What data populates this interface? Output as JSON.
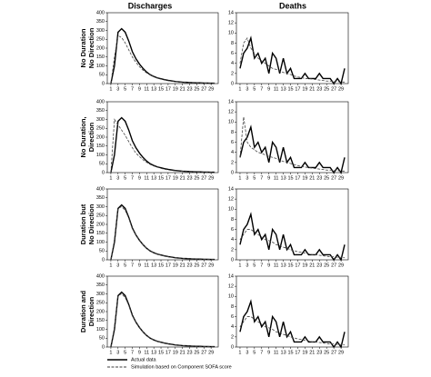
{
  "column_titles": [
    "Discharges",
    "Deaths"
  ],
  "row_labels": [
    [
      "No Duration",
      "No Direction"
    ],
    [
      "No Duration,",
      "Direction"
    ],
    [
      "Duration but",
      "No Direction"
    ],
    [
      "Duration and",
      "Direction"
    ]
  ],
  "legend": [
    {
      "name": "Actual data",
      "dash": false
    },
    {
      "name": "Simulation based on Component SOFA score",
      "dash": true
    }
  ],
  "chart_data": [
    {
      "type": "line",
      "x": [
        1,
        2,
        3,
        4,
        5,
        6,
        7,
        8,
        9,
        10,
        11,
        12,
        13,
        14,
        15,
        16,
        17,
        18,
        19,
        20,
        21,
        22,
        23,
        24,
        25,
        26,
        27,
        28,
        29,
        30
      ],
      "xlim": [
        0,
        31
      ],
      "xticks": [
        1,
        3,
        5,
        7,
        9,
        11,
        13,
        15,
        17,
        19,
        21,
        23,
        25,
        27,
        29
      ],
      "ylim": [
        0,
        400
      ],
      "yticks": [
        0,
        50,
        100,
        150,
        200,
        250,
        300,
        350,
        400
      ],
      "series": [
        {
          "color": "#000000",
          "dash": false,
          "values": [
            0,
            100,
            290,
            310,
            290,
            240,
            180,
            140,
            110,
            85,
            65,
            50,
            40,
            32,
            27,
            22,
            18,
            15,
            12,
            10,
            8,
            7,
            6,
            5,
            4,
            4,
            3,
            3,
            2,
            2
          ]
        },
        {
          "color": "#444444",
          "dash": true,
          "values": [
            0,
            150,
            270,
            260,
            230,
            190,
            150,
            120,
            95,
            75,
            60,
            48,
            38,
            30,
            25,
            20,
            16,
            13,
            11,
            9,
            7,
            6,
            5,
            4,
            4,
            3,
            3,
            2,
            2,
            2
          ]
        }
      ]
    },
    {
      "type": "line",
      "x": [
        1,
        2,
        3,
        4,
        5,
        6,
        7,
        8,
        9,
        10,
        11,
        12,
        13,
        14,
        15,
        16,
        17,
        18,
        19,
        20,
        21,
        22,
        23,
        24,
        25,
        26,
        27,
        28,
        29,
        30
      ],
      "xlim": [
        0,
        31
      ],
      "xticks": [
        1,
        3,
        5,
        7,
        9,
        11,
        13,
        15,
        17,
        19,
        21,
        23,
        25,
        27,
        29
      ],
      "ylim": [
        0,
        14
      ],
      "yticks": [
        0,
        2,
        4,
        6,
        8,
        10,
        12,
        14
      ],
      "series": [
        {
          "color": "#000000",
          "dash": false,
          "values": [
            3,
            6,
            7,
            9,
            5,
            6,
            4,
            5,
            2,
            6,
            5,
            2,
            5,
            2,
            3,
            1,
            1,
            1,
            2,
            1,
            1,
            1,
            2,
            1,
            1,
            1,
            0,
            1,
            0,
            3
          ]
        },
        {
          "color": "#444444",
          "dash": true,
          "values": [
            4,
            8,
            9,
            7,
            6,
            5,
            4.5,
            4,
            3.5,
            3,
            2.8,
            2.5,
            2.2,
            2,
            1.8,
            1.5,
            1.3,
            1.2,
            1,
            1,
            0.9,
            0.8,
            0.7,
            0.6,
            0.5,
            0.5,
            0.4,
            0.4,
            0.3,
            0.3
          ]
        }
      ]
    },
    {
      "type": "line",
      "x": [
        1,
        2,
        3,
        4,
        5,
        6,
        7,
        8,
        9,
        10,
        11,
        12,
        13,
        14,
        15,
        16,
        17,
        18,
        19,
        20,
        21,
        22,
        23,
        24,
        25,
        26,
        27,
        28,
        29,
        30
      ],
      "xlim": [
        0,
        31
      ],
      "xticks": [
        1,
        3,
        5,
        7,
        9,
        11,
        13,
        15,
        17,
        19,
        21,
        23,
        25,
        27,
        29
      ],
      "ylim": [
        0,
        400
      ],
      "yticks": [
        0,
        50,
        100,
        150,
        200,
        250,
        300,
        350,
        400
      ],
      "series": [
        {
          "color": "#000000",
          "dash": false,
          "values": [
            0,
            100,
            290,
            310,
            290,
            240,
            180,
            140,
            110,
            85,
            65,
            50,
            40,
            32,
            27,
            22,
            18,
            15,
            12,
            10,
            8,
            7,
            6,
            5,
            4,
            4,
            3,
            3,
            2,
            2
          ]
        },
        {
          "color": "#444444",
          "dash": true,
          "values": [
            0,
            300,
            270,
            240,
            210,
            175,
            140,
            110,
            90,
            72,
            58,
            46,
            37,
            30,
            24,
            19,
            15,
            12,
            10,
            8,
            7,
            6,
            5,
            4,
            3,
            3,
            2,
            2,
            2,
            1
          ]
        }
      ]
    },
    {
      "type": "line",
      "x": [
        1,
        2,
        3,
        4,
        5,
        6,
        7,
        8,
        9,
        10,
        11,
        12,
        13,
        14,
        15,
        16,
        17,
        18,
        19,
        20,
        21,
        22,
        23,
        24,
        25,
        26,
        27,
        28,
        29,
        30
      ],
      "xlim": [
        0,
        31
      ],
      "xticks": [
        1,
        3,
        5,
        7,
        9,
        11,
        13,
        15,
        17,
        19,
        21,
        23,
        25,
        27,
        29
      ],
      "ylim": [
        0,
        14
      ],
      "yticks": [
        0,
        2,
        4,
        6,
        8,
        10,
        12,
        14
      ],
      "series": [
        {
          "color": "#000000",
          "dash": false,
          "values": [
            3,
            6,
            7,
            9,
            5,
            6,
            4,
            5,
            2,
            6,
            5,
            2,
            5,
            2,
            3,
            1,
            1,
            1,
            2,
            1,
            1,
            1,
            2,
            1,
            1,
            1,
            0,
            1,
            0,
            3
          ]
        },
        {
          "color": "#444444",
          "dash": true,
          "values": [
            3,
            11,
            6,
            5,
            4.5,
            4,
            3.8,
            3.5,
            3.2,
            3,
            2.8,
            2.5,
            2.2,
            2,
            1.8,
            1.6,
            1.4,
            1.2,
            1.1,
            1,
            0.9,
            0.8,
            0.7,
            0.6,
            0.5,
            0.5,
            0.4,
            0.4,
            0.3,
            0.3
          ]
        }
      ]
    },
    {
      "type": "line",
      "x": [
        1,
        2,
        3,
        4,
        5,
        6,
        7,
        8,
        9,
        10,
        11,
        12,
        13,
        14,
        15,
        16,
        17,
        18,
        19,
        20,
        21,
        22,
        23,
        24,
        25,
        26,
        27,
        28,
        29,
        30
      ],
      "xlim": [
        0,
        31
      ],
      "xticks": [
        1,
        3,
        5,
        7,
        9,
        11,
        13,
        15,
        17,
        19,
        21,
        23,
        25,
        27,
        29
      ],
      "ylim": [
        0,
        400
      ],
      "yticks": [
        0,
        50,
        100,
        150,
        200,
        250,
        300,
        350,
        400
      ],
      "series": [
        {
          "color": "#000000",
          "dash": false,
          "values": [
            0,
            100,
            290,
            310,
            290,
            240,
            180,
            140,
            110,
            85,
            65,
            50,
            40,
            32,
            27,
            22,
            18,
            15,
            12,
            10,
            8,
            7,
            6,
            5,
            4,
            4,
            3,
            3,
            2,
            2
          ]
        },
        {
          "color": "#444444",
          "dash": true,
          "values": [
            0,
            110,
            290,
            300,
            280,
            235,
            175,
            140,
            110,
            85,
            65,
            50,
            40,
            32,
            26,
            21,
            17,
            14,
            12,
            10,
            8,
            7,
            6,
            5,
            4,
            4,
            3,
            3,
            2,
            2
          ]
        }
      ]
    },
    {
      "type": "line",
      "x": [
        1,
        2,
        3,
        4,
        5,
        6,
        7,
        8,
        9,
        10,
        11,
        12,
        13,
        14,
        15,
        16,
        17,
        18,
        19,
        20,
        21,
        22,
        23,
        24,
        25,
        26,
        27,
        28,
        29,
        30
      ],
      "xlim": [
        0,
        31
      ],
      "xticks": [
        1,
        3,
        5,
        7,
        9,
        11,
        13,
        15,
        17,
        19,
        21,
        23,
        25,
        27,
        29
      ],
      "ylim": [
        0,
        14
      ],
      "yticks": [
        0,
        2,
        4,
        6,
        8,
        10,
        12,
        14
      ],
      "series": [
        {
          "color": "#000000",
          "dash": false,
          "values": [
            3,
            6,
            7,
            9,
            5,
            6,
            4,
            5,
            2,
            6,
            5,
            2,
            5,
            2,
            3,
            1,
            1,
            1,
            2,
            1,
            1,
            1,
            2,
            1,
            1,
            1,
            0,
            1,
            0,
            3
          ]
        },
        {
          "color": "#444444",
          "dash": true,
          "values": [
            4,
            5,
            6,
            6,
            5.5,
            5,
            4.5,
            4,
            3.8,
            3.5,
            3,
            2.8,
            2.5,
            2.3,
            2,
            1.8,
            1.6,
            1.5,
            1.3,
            1.2,
            1,
            1,
            0.9,
            0.8,
            0.7,
            0.6,
            0.6,
            0.5,
            0.5,
            0.4
          ]
        }
      ]
    },
    {
      "type": "line",
      "x": [
        1,
        2,
        3,
        4,
        5,
        6,
        7,
        8,
        9,
        10,
        11,
        12,
        13,
        14,
        15,
        16,
        17,
        18,
        19,
        20,
        21,
        22,
        23,
        24,
        25,
        26,
        27,
        28,
        29,
        30
      ],
      "xlim": [
        0,
        31
      ],
      "xticks": [
        1,
        3,
        5,
        7,
        9,
        11,
        13,
        15,
        17,
        19,
        21,
        23,
        25,
        27,
        29
      ],
      "ylim": [
        0,
        400
      ],
      "yticks": [
        0,
        50,
        100,
        150,
        200,
        250,
        300,
        350,
        400
      ],
      "series": [
        {
          "color": "#000000",
          "dash": false,
          "values": [
            0,
            100,
            290,
            310,
            290,
            240,
            180,
            140,
            110,
            85,
            65,
            50,
            40,
            32,
            27,
            22,
            18,
            15,
            12,
            10,
            8,
            7,
            6,
            5,
            4,
            4,
            3,
            3,
            2,
            2
          ]
        },
        {
          "color": "#444444",
          "dash": true,
          "values": [
            0,
            110,
            290,
            300,
            280,
            235,
            175,
            140,
            110,
            85,
            65,
            50,
            40,
            32,
            26,
            21,
            17,
            14,
            12,
            10,
            8,
            7,
            6,
            5,
            4,
            4,
            3,
            3,
            2,
            2
          ]
        }
      ]
    },
    {
      "type": "line",
      "x": [
        1,
        2,
        3,
        4,
        5,
        6,
        7,
        8,
        9,
        10,
        11,
        12,
        13,
        14,
        15,
        16,
        17,
        18,
        19,
        20,
        21,
        22,
        23,
        24,
        25,
        26,
        27,
        28,
        29,
        30
      ],
      "xlim": [
        0,
        31
      ],
      "xticks": [
        1,
        3,
        5,
        7,
        9,
        11,
        13,
        15,
        17,
        19,
        21,
        23,
        25,
        27,
        29
      ],
      "ylim": [
        0,
        14
      ],
      "yticks": [
        0,
        2,
        4,
        6,
        8,
        10,
        12,
        14
      ],
      "series": [
        {
          "color": "#000000",
          "dash": false,
          "values": [
            3,
            6,
            7,
            9,
            5,
            6,
            4,
            5,
            2,
            6,
            5,
            2,
            5,
            2,
            3,
            1,
            1,
            1,
            2,
            1,
            1,
            1,
            2,
            1,
            1,
            1,
            0,
            1,
            0,
            3
          ]
        },
        {
          "color": "#444444",
          "dash": true,
          "values": [
            4,
            5,
            6,
            6,
            5.5,
            5,
            4.5,
            4,
            3.8,
            3.5,
            3,
            2.8,
            2.5,
            2.3,
            2,
            1.8,
            1.6,
            1.5,
            1.3,
            1.2,
            1,
            1,
            0.9,
            0.8,
            0.7,
            0.6,
            0.6,
            0.5,
            0.5,
            0.4
          ]
        }
      ]
    }
  ]
}
